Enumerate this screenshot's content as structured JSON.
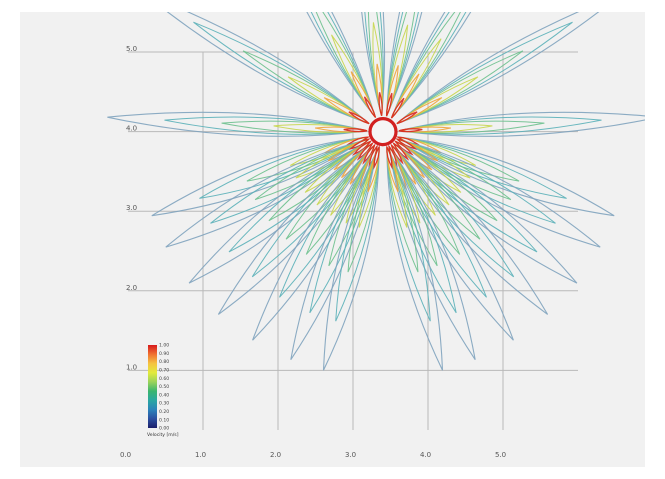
{
  "chart_data": {
    "type": "contour",
    "title": "",
    "xlabel": "",
    "ylabel": "",
    "x_ticks": [
      "0.0",
      "1.0",
      "2.0",
      "3.0",
      "4.0",
      "5.0"
    ],
    "y_ticks": [
      "1.0",
      "2.0",
      "3.0",
      "4.0",
      "5.0"
    ],
    "xlim": [
      0.0,
      6.0
    ],
    "ylim": [
      0.0,
      5.0
    ],
    "grid": true,
    "obstacle": {
      "type": "circle",
      "cx": 3.4,
      "cy": 4.0,
      "r": 0.18
    },
    "colorbar": {
      "title": "Velocity [m/s]",
      "ticks": [
        "1.00",
        "0.90",
        "0.80",
        "0.70",
        "0.60",
        "0.50",
        "0.40",
        "0.30",
        "0.20",
        "0.10",
        "0.00"
      ],
      "placement": "bottom-left",
      "colors": [
        "#d7191c",
        "#f07030",
        "#f5c242",
        "#e3ea3c",
        "#9bd35a",
        "#3bb56e",
        "#2aa7a2",
        "#2b83ba",
        "#2b4fa0",
        "#1c1f6b"
      ]
    },
    "lobe_angles_deg": [
      95,
      77,
      118,
      58,
      150,
      30,
      177,
      3,
      200,
      340,
      208,
      332,
      218,
      322,
      228,
      312,
      238,
      302,
      248,
      292,
      256,
      284
    ]
  }
}
